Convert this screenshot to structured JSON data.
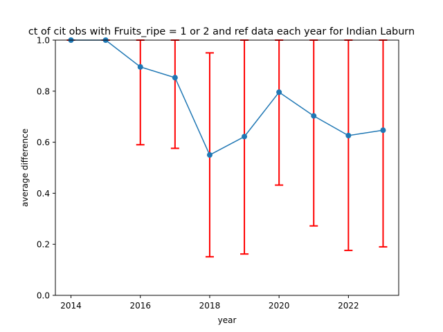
{
  "chart_data": {
    "type": "line",
    "title": "ct of cit obs with Fruits_ripe = 1 or 2 and ref data each year for Indian Laburn",
    "xlabel": "year",
    "ylabel": "average difference",
    "xlim": [
      2013.55,
      2023.45
    ],
    "ylim": [
      0.0,
      1.0
    ],
    "xticks": [
      "2014",
      "2016",
      "2018",
      "2020",
      "2022"
    ],
    "yticks": [
      "0.0",
      "0.2",
      "0.4",
      "0.6",
      "0.8",
      "1.0"
    ],
    "grid": false,
    "x": [
      2014,
      2015,
      2016,
      2017,
      2018,
      2019,
      2020,
      2021,
      2022,
      2023
    ],
    "series": [
      {
        "values": [
          1.0,
          1.0,
          0.895,
          0.853,
          0.55,
          0.622,
          0.796,
          0.703,
          0.626,
          0.647
        ],
        "error_low": [
          1.0,
          1.0,
          0.59,
          0.576,
          0.151,
          0.162,
          0.432,
          0.272,
          0.176,
          0.19
        ],
        "error_high": [
          1.0,
          1.0,
          1.0,
          1.0,
          0.95,
          1.0,
          1.0,
          1.0,
          1.0,
          1.0
        ]
      }
    ],
    "colors": {
      "line": "#1f77b4",
      "errorbar": "#ff0000",
      "axes": "#000000"
    }
  }
}
